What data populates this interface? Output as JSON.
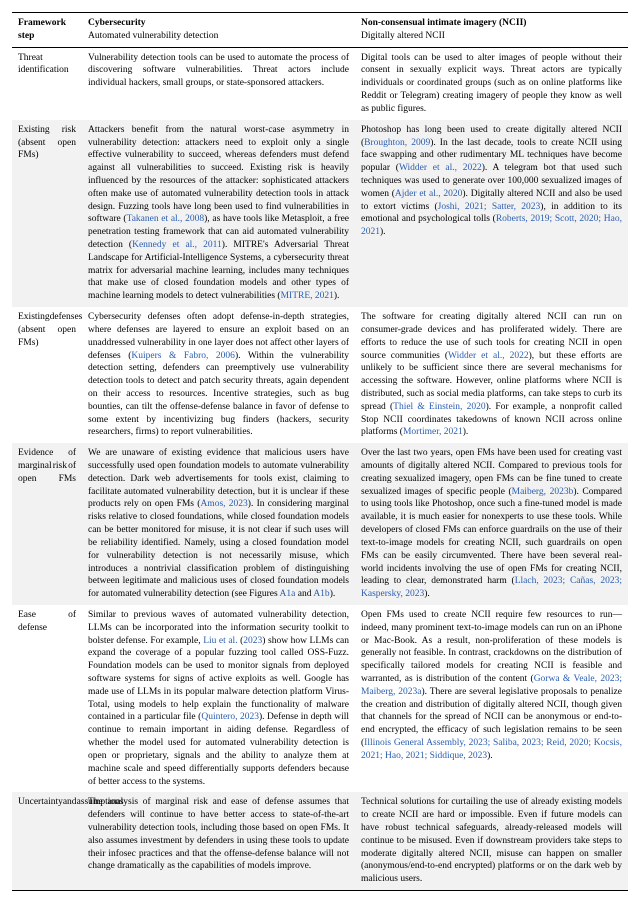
{
  "header": {
    "col0_line1": "Framework",
    "col0_line2": "step",
    "col1_line1": "Cybersecurity",
    "col1_line2": "Automated vulnerability detection",
    "col2_line1": "Non-consensual intimate imagery (NCII)",
    "col2_line2": "Digitally altered NCII"
  },
  "rows": [
    {
      "label": "Threat identification",
      "cyber": "Vulnerability detection tools can be used to automate the process of discovering software vulnerabilities. Threat actors include individual hackers, small groups, or state-sponsored attackers.",
      "ncii": "Digital tools can be used to alter images of people without their consent in sexually explicit ways. Threat actors are typically individuals or coordinated groups (such as on online platforms like Reddit or Telegram) creating imagery of people they know as well as public figures."
    },
    {
      "label_l1": "Existing risk",
      "label_l2": "(absent open",
      "label_l3": "FMs)",
      "cyber": "Attackers benefit from the natural worst-case asymmetry in vulnerability detection: attackers need to exploit only a single effective vulnerability to succeed, whereas defenders must defend against all vulnerabilities to succeed. Existing risk is heavily influenced by the resources of the attacker: sophisticated attackers often make use of automated vulnerability detection tools in attack design. Fuzzing tools have long been used to find vulnerabilities in software (Takanen et al., 2008), as have tools like Metasploit, a free penetration testing framework that can aid automated vulnerability detection (Kennedy et al., 2011). MITRE's Adversarial Threat Landscape for Artificial-Intelligence Systems, a cybersecurity threat matrix for adversarial machine learning, includes many techniques that make use of closed foundation models and other types of machine learning models to detect vulnerabilities (MITRE, 2021).",
      "ncii": "Photoshop has long been used to create digitally altered NCII (Broughton, 2009). In the last decade, tools to create NCII using face swapping and other rudimentary ML techniques have become popular (Widder et al., 2022). A telegram bot that used such techniques was used to generate over 100,000 sexualized images of women (Ajder et al., 2020). Digitally altered NCII and also be used to extort victims (Joshi, 2021; Satter, 2023), in addition to its emotional and psychological tolls (Roberts, 2019; Scott, 2020; Hao, 2021)."
    },
    {
      "label_l1": "Existing",
      "label_l2": "defenses",
      "label_l3": "(absent open",
      "label_l4": "FMs)",
      "cyber": "Cybersecurity defenses often adopt defense-in-depth strategies, where defenses are layered to ensure an exploit based on an unaddressed vulnerability in one layer does not affect other layers of defenses (Kuipers & Fabro, 2006). Within the vulnerability detection setting, defenders can preemptively use vulnerability detection tools to detect and patch security threats, again dependent on their access to resources. Incentive strategies, such as bug bounties, can tilt the offense-defense balance in favor of defense to some extent by incentivizing bug finders (hackers, security researchers, firms) to report vulnerabilities.",
      "ncii": "The software for creating digitally altered NCII can run on consumer-grade devices and has proliferated widely. There are efforts to reduce the use of such tools for creating NCII in open source communities (Widder et al., 2022), but these efforts are unlikely to be sufficient since there are several mechanisms for accessing the software. However, online platforms where NCII is distributed, such as social media platforms, can take steps to curb its spread (Thiel & Einstein, 2020). For example, a nonprofit called Stop NCII coordinates takedowns of known NCII across online platforms (Mortimer, 2021)."
    },
    {
      "label_l1": "Evidence of",
      "label_l2": "marginal risk of",
      "label_l3": "open FMs",
      "cyber": "We are unaware of existing evidence that malicious users have successfully used open foundation models to automate vulnerability detection. Dark web advertisements for tools exist, claiming to facilitate automated vulnerability detection, but it is unclear if these products rely on open FMs (Amos, 2023). In considering marginal risks relative to closed foundations, while closed foundation models can be better monitored for misuse, it is not clear if such uses will be reliability identified. Namely, using a closed foundation model for vulnerability detection is not necessarily misuse, which introduces a nontrivial classification problem of distinguishing between legitimate and malicious uses of closed foundation models for automated vulnerability detection (see Figures A1a and A1b).",
      "ncii": "Over the last two years, open FMs have been used for creating vast amounts of digitally altered NCII. Compared to previous tools for creating sexualized imagery, open FMs can be fine tuned to create sexualized images of specific people (Maiberg, 2023b). Compared to using tools like Photoshop, once such a fine-tuned model is made available, it is much easier for nonexperts to use these tools. While developers of closed FMs can enforce guardrails on the use of their text-to-image models for creating NCII, such guardrails on open FMs can be easily circumvented. There have been several real-world incidents involving the use of open FMs for creating NCII, leading to clear, demonstrated harm (Llach, 2023; Cañas, 2023; Kaspersky, 2023)."
    },
    {
      "label_l1": "Ease of",
      "label_l2": "defense",
      "cyber": "Similar to previous waves of automated vulnerability detection, LLMs can be incorporated into the information security toolkit to bolster defense. For example, Liu et al. (2023) show how LLMs can expand the coverage of a popular fuzzing tool called OSS-Fuzz. Foundation models can be used to monitor signals from deployed software systems for signs of active exploits as well. Google has made use of LLMs in its popular malware detection platform Virus-Total, using models to help explain the functionality of malware contained in a particular file (Quintero, 2023). Defense in depth will continue to remain important in aiding defense. Regardless of whether the model used for automated vulnerability detection is open or proprietary, signals and the ability to analyze them at machine scale and speed differentially supports defenders because of better access to the systems.",
      "ncii": "Open FMs used to create NCII require few resources to run—indeed, many prominent text-to-image models can run on an iPhone or Mac-Book. As a result, non-proliferation of these models is generally not feasible. In contrast, crackdowns on the distribution of specifically tailored models for creating NCII is feasible and warranted, as is distribution of the content (Gorwa & Veale, 2023; Maiberg, 2023a). There are several legislative proposals to penalize the creation and distribution of digitally altered NCII, though given that channels for the spread of NCII can be anonymous or end-to-end encrypted, the efficacy of such legislation remains to be seen (Illinois General Assembly, 2023; Saliba, 2023; Reid, 2020; Kocsis, 2021; Hao, 2021; Siddique, 2023)."
    },
    {
      "label_l1": "Uncertainty",
      "label_l2": "and",
      "label_l3": "assumptions",
      "cyber": "The analysis of marginal risk and ease of defense assumes that defenders will continue to have better access to state-of-the-art vulnerability detection tools, including those based on open FMs. It also assumes investment by defenders in using these tools to update their infosec practices and that the offense-defense balance will not change dramatically as the capabilities of models improve.",
      "ncii": "Technical solutions for curtailing the use of already existing models to create NCII are hard or impossible. Even if future models can have robust technical safeguards, already-released models will continue to be misused. Even if downstream providers take steps to moderate digitally altered NCII, misuse can happen on smaller (anonymous/end-to-end encrypted) platforms or on the dark web by malicious users."
    }
  ]
}
